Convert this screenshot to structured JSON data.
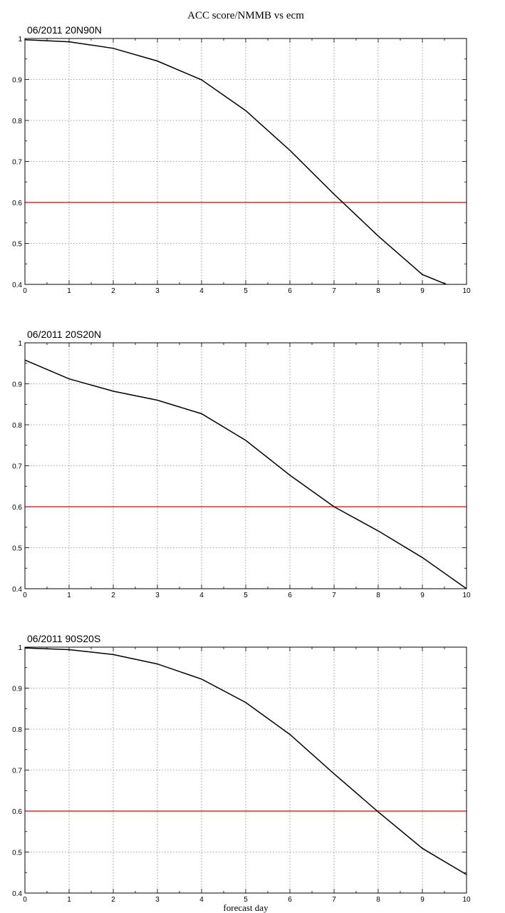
{
  "figure": {
    "title": "ACC score/NMMB vs ecm",
    "xlabel": "forecast day"
  },
  "colors": {
    "series": "#000000",
    "threshold": "#e00000",
    "grid": "#888888"
  },
  "chart_data": [
    {
      "type": "line",
      "title": "06/2011 20N90N",
      "x": [
        0,
        1,
        2,
        3,
        4,
        5,
        6,
        7,
        8,
        9,
        10
      ],
      "series": [
        {
          "values": [
            0.997,
            0.992,
            0.976,
            0.945,
            0.899,
            0.824,
            0.727,
            0.62,
            0.518,
            0.424,
            0.38
          ]
        }
      ],
      "threshold": 0.6,
      "xlim": [
        0,
        10
      ],
      "ylim": [
        0.4,
        1.0
      ],
      "xticks": [
        "0",
        "1",
        "2",
        "3",
        "4",
        "5",
        "6",
        "7",
        "8",
        "9",
        "10"
      ],
      "yticks": [
        "0.4",
        "0.5",
        "0.6",
        "0.7",
        "0.8",
        "0.9",
        "1"
      ],
      "grid": true
    },
    {
      "type": "line",
      "title": "06/2011 20S20N",
      "x": [
        0,
        1,
        2,
        3,
        4,
        5,
        6,
        7,
        8,
        9,
        10
      ],
      "series": [
        {
          "values": [
            0.958,
            0.912,
            0.882,
            0.86,
            0.827,
            0.762,
            0.677,
            0.6,
            0.541,
            0.476,
            0.4
          ]
        }
      ],
      "threshold": 0.6,
      "xlim": [
        0,
        10
      ],
      "ylim": [
        0.4,
        1.0
      ],
      "xticks": [
        "0",
        "1",
        "2",
        "3",
        "4",
        "5",
        "6",
        "7",
        "8",
        "9",
        "10"
      ],
      "yticks": [
        "0.4",
        "0.5",
        "0.6",
        "0.7",
        "0.8",
        "0.9",
        "1"
      ],
      "grid": true
    },
    {
      "type": "line",
      "title": "06/2011 90S20S",
      "x": [
        0,
        1,
        2,
        3,
        4,
        5,
        6,
        7,
        8,
        9,
        10
      ],
      "series": [
        {
          "values": [
            0.998,
            0.994,
            0.982,
            0.959,
            0.922,
            0.865,
            0.787,
            0.691,
            0.598,
            0.509,
            0.445
          ]
        }
      ],
      "threshold": 0.6,
      "xlim": [
        0,
        10
      ],
      "ylim": [
        0.4,
        1.0
      ],
      "xticks": [
        "0",
        "1",
        "2",
        "3",
        "4",
        "5",
        "6",
        "7",
        "8",
        "9",
        "10"
      ],
      "yticks": [
        "0.4",
        "0.5",
        "0.6",
        "0.7",
        "0.8",
        "0.9",
        "1"
      ],
      "grid": true
    }
  ]
}
